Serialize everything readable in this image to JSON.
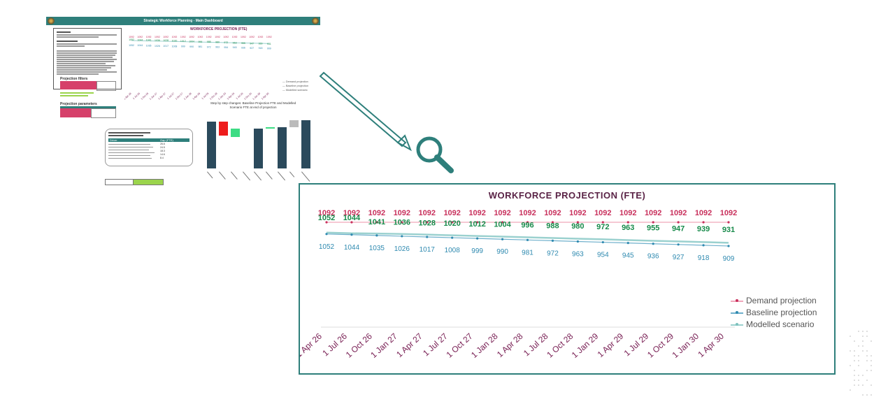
{
  "thumbnail": {
    "banner_title": "Strategic Workforce Planning - Main Dashboard",
    "chart_title": "WORKFORCE PROJECTION (FTE)",
    "projection_filters_title": "Projection filters",
    "projection_parameters_title": "Projection parameters",
    "waterfall_title": "Step by step changes: Baseline Projection FTE and Modelled Scenario FTE at end of projection",
    "list_header_label": "Driver",
    "list_header_value": "Gap (FTE)",
    "list_values": [
      "26.6",
      "24.5",
      "18.3",
      "14.6",
      "8.4"
    ],
    "waterfall_values": [
      "1052",
      "909",
      "936",
      "1014"
    ]
  },
  "panel": {
    "title": "WORKFORCE PROJECTION (FTE)"
  },
  "colors": {
    "demand": "#c8305c",
    "baseline": "#2f8ab0",
    "modelled": "#178a4a",
    "modelled_line": "#9bd1cf",
    "accent": "#2e7f7b",
    "axis_label": "#7a2256"
  },
  "chart_data": {
    "type": "line",
    "title": "WORKFORCE PROJECTION (FTE)",
    "categories": [
      "1 Apr 26",
      "1 Jul 26",
      "1 Oct 26",
      "1 Jan 27",
      "1 Apr 27",
      "1 Jul 27",
      "1 Oct 27",
      "1 Jan 28",
      "1 Apr 28",
      "1 Jul 28",
      "1 Oct 28",
      "1 Jan 29",
      "1 Apr 29",
      "1 Jul 29",
      "1 Oct 29",
      "1 Jan 30",
      "1 Apr 30"
    ],
    "series": [
      {
        "name": "Demand projection",
        "values": [
          1092,
          1092,
          1092,
          1092,
          1092,
          1092,
          1092,
          1092,
          1092,
          1092,
          1092,
          1092,
          1092,
          1092,
          1092,
          1092,
          1092
        ]
      },
      {
        "name": "Baseline projection",
        "values": [
          1052,
          1044,
          1035,
          1026,
          1017,
          1008,
          999,
          990,
          981,
          972,
          963,
          954,
          945,
          936,
          927,
          918,
          909
        ]
      },
      {
        "name": "Modelled scenario",
        "values": [
          1052,
          1044,
          1041,
          1036,
          1028,
          1020,
          1012,
          1004,
          996,
          988,
          980,
          972,
          963,
          955,
          947,
          939,
          931
        ]
      }
    ],
    "legend": [
      "Demand projection",
      "Baseline projection",
      "Modelled scenario"
    ],
    "legend_position": "right",
    "grid": false
  }
}
